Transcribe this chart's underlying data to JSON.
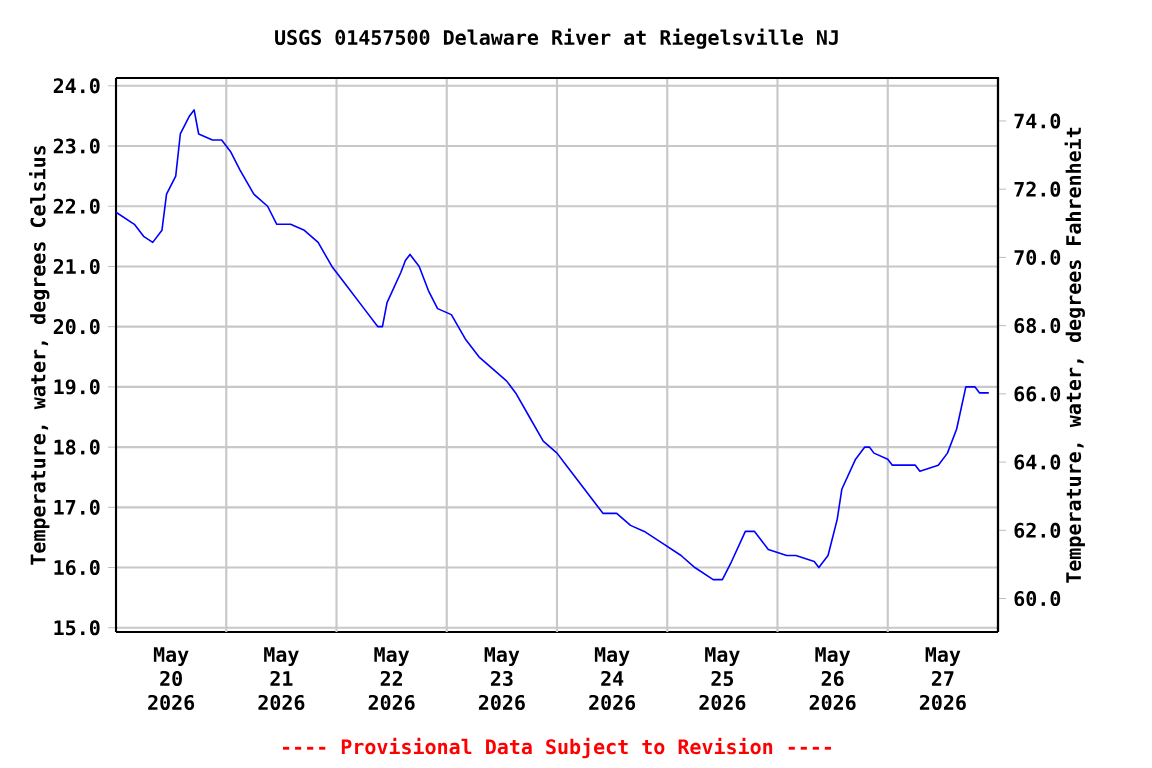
{
  "chart_data": {
    "type": "line",
    "title": "USGS 01457500 Delaware River at Riegelsville NJ",
    "ylabel": "Temperature, water, degrees Celsius",
    "y2label": "Temperature, water, degrees Fahrenheit",
    "annotations": [
      "---- Provisional Data Subject to Revision ----"
    ],
    "x": [
      "2026-05-20T00:00",
      "2026-05-20T04:00",
      "2026-05-20T06:00",
      "2026-05-20T08:00",
      "2026-05-20T10:00",
      "2026-05-20T11:00",
      "2026-05-20T13:00",
      "2026-05-20T14:00",
      "2026-05-20T16:00",
      "2026-05-20T17:00",
      "2026-05-20T18:00",
      "2026-05-20T21:00",
      "2026-05-20T23:00",
      "2026-05-21T01:00",
      "2026-05-21T03:00",
      "2026-05-21T06:00",
      "2026-05-21T09:00",
      "2026-05-21T11:00",
      "2026-05-21T14:00",
      "2026-05-21T17:00",
      "2026-05-21T20:00",
      "2026-05-21T23:00",
      "2026-05-22T02:00",
      "2026-05-22T06:00",
      "2026-05-22T09:00",
      "2026-05-22T10:00",
      "2026-05-22T11:00",
      "2026-05-22T14:00",
      "2026-05-22T15:00",
      "2026-05-22T16:00",
      "2026-05-22T18:00",
      "2026-05-22T20:00",
      "2026-05-22T22:00",
      "2026-05-23T01:00",
      "2026-05-23T04:00",
      "2026-05-23T07:00",
      "2026-05-23T10:00",
      "2026-05-23T13:00",
      "2026-05-23T15:00",
      "2026-05-23T18:00",
      "2026-05-23T21:00",
      "2026-05-24T00:00",
      "2026-05-24T02:00",
      "2026-05-24T05:00",
      "2026-05-24T10:00",
      "2026-05-24T13:00",
      "2026-05-24T16:00",
      "2026-05-24T19:00",
      "2026-05-24T23:00",
      "2026-05-25T03:00",
      "2026-05-25T06:00",
      "2026-05-25T10:00",
      "2026-05-25T12:00",
      "2026-05-25T14:00",
      "2026-05-25T17:00",
      "2026-05-25T19:00",
      "2026-05-25T20:00",
      "2026-05-25T22:00",
      "2026-05-26T02:00",
      "2026-05-26T04:00",
      "2026-05-26T08:00",
      "2026-05-26T09:00",
      "2026-05-26T11:00",
      "2026-05-26T13:00",
      "2026-05-26T14:00",
      "2026-05-26T17:00",
      "2026-05-26T19:00",
      "2026-05-26T20:00",
      "2026-05-26T21:00",
      "2026-05-27T00:00",
      "2026-05-27T01:00",
      "2026-05-27T06:00",
      "2026-05-27T07:00",
      "2026-05-27T11:00",
      "2026-05-27T13:00",
      "2026-05-27T15:00",
      "2026-05-27T17:00",
      "2026-05-27T19:00",
      "2026-05-27T20:00",
      "2026-05-27T22:00"
    ],
    "series": [
      {
        "color": "#0000ff",
        "values": [
          21.9,
          21.7,
          21.5,
          21.4,
          21.6,
          22.2,
          22.5,
          23.2,
          23.5,
          23.6,
          23.2,
          23.1,
          23.1,
          22.9,
          22.6,
          22.2,
          22.0,
          21.7,
          21.7,
          21.6,
          21.4,
          21.0,
          20.7,
          20.3,
          20.0,
          20.0,
          20.4,
          20.9,
          21.1,
          21.2,
          21.0,
          20.6,
          20.3,
          20.2,
          19.8,
          19.5,
          19.3,
          19.1,
          18.9,
          18.5,
          18.1,
          17.9,
          17.7,
          17.4,
          16.9,
          16.9,
          16.7,
          16.6,
          16.4,
          16.2,
          16.0,
          15.8,
          15.8,
          16.1,
          16.6,
          16.6,
          16.5,
          16.3,
          16.2,
          16.2,
          16.1,
          16.0,
          16.2,
          16.8,
          17.3,
          17.8,
          18.0,
          18.0,
          17.9,
          17.8,
          17.7,
          17.7,
          17.6,
          17.7,
          17.9,
          18.3,
          19.0,
          19.0,
          18.9,
          18.9
        ]
      }
    ],
    "xlim": [
      "2026-05-20T00:00",
      "2026-05-28T00:00"
    ],
    "xticks": [
      {
        "value": "2026-05-20T12:00",
        "label": "May 20 2026"
      },
      {
        "value": "2026-05-21T12:00",
        "label": "May 21 2026"
      },
      {
        "value": "2026-05-22T12:00",
        "label": "May 22 2026"
      },
      {
        "value": "2026-05-23T12:00",
        "label": "May 23 2026"
      },
      {
        "value": "2026-05-24T12:00",
        "label": "May 24 2026"
      },
      {
        "value": "2026-05-25T12:00",
        "label": "May 25 2026"
      },
      {
        "value": "2026-05-26T12:00",
        "label": "May 26 2026"
      },
      {
        "value": "2026-05-27T12:00",
        "label": "May 27 2026"
      },
      {
        "value": "2026-05-21T00:00",
        "label": null
      },
      {
        "value": "2026-05-22T00:00",
        "label": null
      },
      {
        "value": "2026-05-23T00:00",
        "label": null
      },
      {
        "value": "2026-05-24T00:00",
        "label": null
      },
      {
        "value": "2026-05-25T00:00",
        "label": null
      },
      {
        "value": "2026-05-26T00:00",
        "label": null
      },
      {
        "value": "2026-05-27T00:00",
        "label": null
      }
    ],
    "ylim": [
      14.93,
      24.13
    ],
    "yticks": [
      {
        "value": 15,
        "label": "15.0"
      },
      {
        "value": 16,
        "label": "16.0"
      },
      {
        "value": 17,
        "label": "17.0"
      },
      {
        "value": 18,
        "label": "18.0"
      },
      {
        "value": 19,
        "label": "19.0"
      },
      {
        "value": 20,
        "label": "20.0"
      },
      {
        "value": 21,
        "label": "21.0"
      },
      {
        "value": 22,
        "label": "22.0"
      },
      {
        "value": 23,
        "label": "23.0"
      },
      {
        "value": 24,
        "label": "24.0"
      }
    ],
    "y2lim": [
      59.02,
      75.26
    ],
    "y2ticks": [
      {
        "value": 60,
        "label": "60.0"
      },
      {
        "value": 62,
        "label": "62.0"
      },
      {
        "value": 64,
        "label": "64.0"
      },
      {
        "value": 66,
        "label": "66.0"
      },
      {
        "value": 68,
        "label": "68.0"
      },
      {
        "value": 70,
        "label": "70.0"
      },
      {
        "value": 72,
        "label": "72.0"
      },
      {
        "value": 74,
        "label": "74.0"
      }
    ],
    "grid": true,
    "marker": "none",
    "line_style": "solid"
  }
}
